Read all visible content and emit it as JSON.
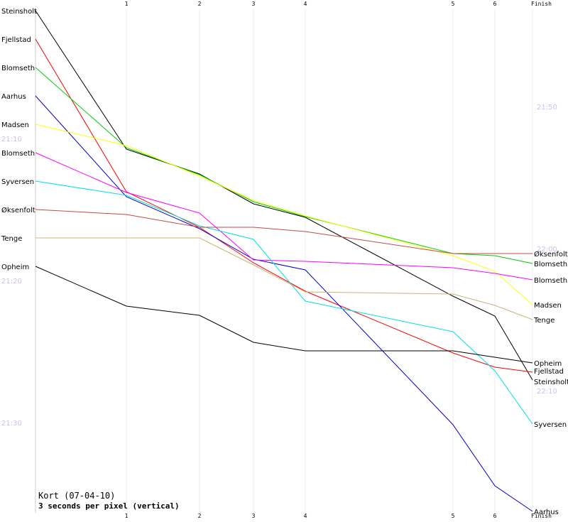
{
  "chart_data": {
    "type": "line",
    "title": "Kort (07-04-10)",
    "subtitle": "3 seconds per pixel (vertical)",
    "x_ticks": [
      "1",
      "2",
      "3",
      "4",
      "5",
      "6",
      "Finish"
    ],
    "x_tick_values": [
      1,
      2,
      3,
      4,
      5,
      6,
      7
    ],
    "time_labels_left": [
      {
        "text": "21:10",
        "y": 195
      },
      {
        "text": "21:20",
        "y": 395
      },
      {
        "text": "21:30",
        "y": 595
      }
    ],
    "time_labels_right": [
      {
        "text": "21:50",
        "y": 150
      },
      {
        "text": "22:00",
        "y": 350
      },
      {
        "text": "22:10",
        "y": 550
      }
    ],
    "ylim": [
      15,
      722
    ],
    "y_unit": "pixels (3 seconds per pixel)",
    "series": [
      {
        "name": "Steinsholt",
        "color": "#000000",
        "start_y": 15,
        "points": [
          15,
          210,
          245,
          287,
          306,
          417,
          445,
          535
        ],
        "end_label": "Steinsholt"
      },
      {
        "name": "Fjellstad",
        "color": "#ff0000",
        "start_y": 55,
        "points": [
          55,
          270,
          320,
          370,
          410,
          497,
          517,
          524
        ],
        "end_label": "Fjellstad"
      },
      {
        "name": "Blomseth",
        "color": "#00cc00",
        "start_y": 95,
        "points": [
          95,
          208,
          246,
          284,
          305,
          357,
          360,
          371
        ],
        "end_label": "Blomseth"
      },
      {
        "name": "Aarhus",
        "color": "#0000cc",
        "start_y": 135,
        "points": [
          135,
          277,
          322,
          365,
          380,
          598,
          684,
          720
        ],
        "end_label": "Aarhus"
      },
      {
        "name": "Madsen",
        "color": "#ffff00",
        "start_y": 175,
        "points": [
          175,
          205,
          248,
          282,
          304,
          360,
          382,
          429
        ],
        "end_label": "Madsen"
      },
      {
        "name": "Blomseth",
        "color": "#ff00ff",
        "start_y": 215,
        "points": [
          215,
          271,
          300,
          366,
          368,
          377,
          385,
          394
        ],
        "end_label": "Blomseth"
      },
      {
        "name": "Syversen",
        "color": "#00e0e0",
        "start_y": 255,
        "points": [
          255,
          275,
          318,
          337,
          424,
          467,
          522,
          597
        ],
        "end_label": "Syversen"
      },
      {
        "name": "Øksenfolt",
        "color": "#c84848",
        "start_y": 295,
        "points": [
          295,
          302,
          320,
          320,
          326,
          357,
          357,
          357
        ],
        "end_label": "Øksenfolt"
      },
      {
        "name": "Tenge",
        "color": "#c8b478",
        "start_y": 335,
        "points": [
          335,
          335,
          335,
          373,
          411,
          414,
          430,
          450
        ],
        "end_label": "Tenge"
      },
      {
        "name": "Opheim",
        "color": "#000000",
        "start_y": 375,
        "points": [
          375,
          431,
          444,
          482,
          494,
          494,
          503,
          511
        ],
        "end_label": "Opheim"
      }
    ]
  }
}
